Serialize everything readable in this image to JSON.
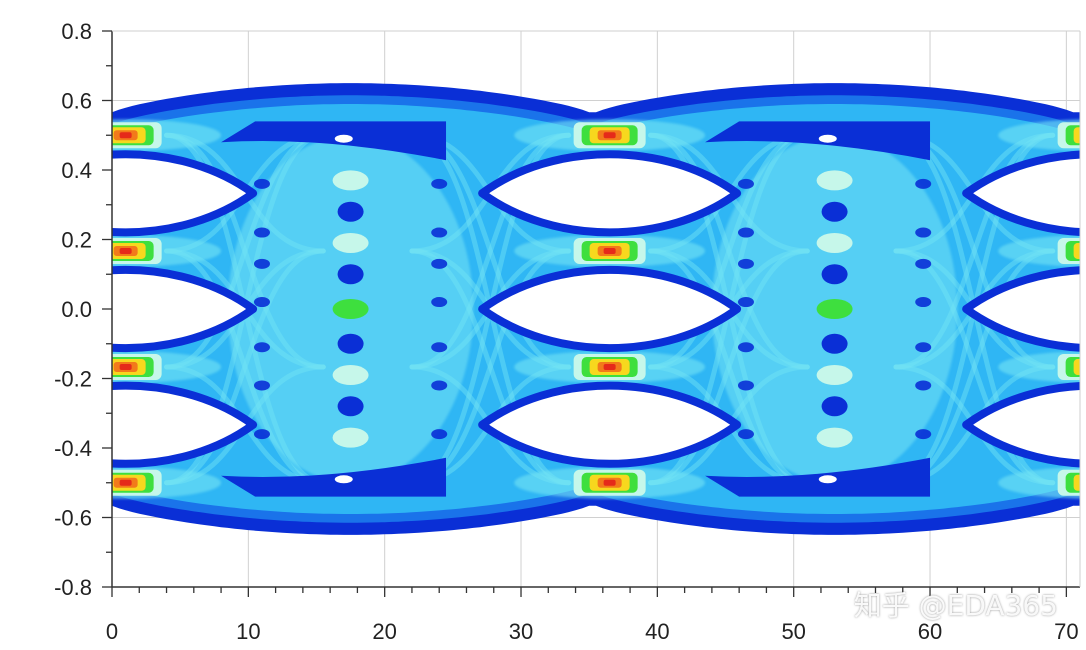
{
  "chart_data": {
    "type": "heatmap",
    "subtype": "eye-diagram",
    "title": "",
    "xlabel": "",
    "ylabel": "",
    "xlim": [
      0,
      71
    ],
    "ylim": [
      -0.8,
      0.8
    ],
    "x_ticks": [
      0,
      10,
      20,
      30,
      40,
      50,
      60,
      70
    ],
    "x_tick_labels": [
      "0",
      "10",
      "20",
      "30",
      "40",
      "50",
      "60",
      "70"
    ],
    "y_ticks": [
      0.8,
      0.6,
      0.4,
      0.2,
      0.0,
      -0.2,
      -0.4,
      -0.6,
      -0.8
    ],
    "y_tick_labels": [
      "0.8",
      "0.6",
      "0.4",
      "0.2",
      "0.0",
      "-0.2",
      "-0.4",
      "-0.6",
      "-0.8"
    ],
    "grid": true,
    "signal_levels": [
      0.5,
      0.167,
      -0.167,
      -0.5
    ],
    "envelope": {
      "max": 0.65,
      "min": -0.65
    },
    "unit_interval": 35.5,
    "eye_centers_x": [
      1,
      36.5,
      72
    ],
    "crossing_centers_x": [
      17.5,
      53
    ],
    "eye_y_centers": [
      0.333,
      0.0,
      -0.333
    ],
    "eye_height": 0.24,
    "density_colors": [
      "#ffffff",
      "#0a2fd6",
      "#1a73ea",
      "#2fb6f4",
      "#74e4f4",
      "#c6f7ea",
      "#3edf3e",
      "#f7d81e",
      "#f27a1a",
      "#e52a1a"
    ]
  },
  "watermark": "知乎 @EDA365"
}
